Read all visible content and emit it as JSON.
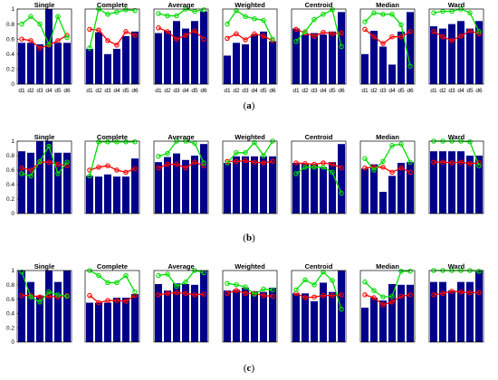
{
  "chart_data": [
    {
      "type": "bar",
      "caption": "(a)",
      "categories": [
        "d1",
        "d2",
        "d3",
        "d4",
        "d5",
        "d6"
      ],
      "ylim": [
        0,
        1
      ],
      "yticks": [
        "0",
        "0.2",
        "0.4",
        "0.6",
        "0.8",
        "1"
      ],
      "panels": [
        {
          "title": "Single",
          "bars": [
            0.55,
            0.55,
            0.53,
            1.0,
            0.55,
            0.55
          ],
          "red": [
            0.6,
            0.58,
            0.48,
            0.52,
            0.58,
            0.65
          ],
          "green": [
            0.8,
            0.9,
            0.8,
            0.53,
            0.9,
            0.62
          ]
        },
        {
          "title": "Complete",
          "bars": [
            0.47,
            0.69,
            0.4,
            0.47,
            0.64,
            0.7
          ],
          "red": [
            0.73,
            0.72,
            0.58,
            0.52,
            0.7,
            0.65
          ],
          "green": [
            0.48,
            1.0,
            0.93,
            0.96,
            0.99,
            0.98
          ]
        },
        {
          "title": "Average",
          "bars": [
            0.68,
            0.71,
            0.84,
            0.74,
            0.84,
            0.97
          ],
          "red": [
            0.75,
            0.7,
            0.6,
            0.65,
            0.71,
            0.6
          ],
          "green": [
            0.94,
            0.91,
            0.91,
            1.0,
            0.97,
            0.99
          ]
        },
        {
          "title": "Weighted",
          "bars": [
            0.38,
            0.55,
            0.53,
            0.66,
            0.7,
            0.57
          ],
          "red": [
            0.61,
            0.67,
            0.59,
            0.67,
            0.64,
            0.58
          ],
          "green": [
            0.8,
            0.98,
            0.9,
            0.87,
            0.85,
            0.6
          ]
        },
        {
          "title": "Centroid",
          "bars": [
            0.74,
            0.66,
            0.68,
            0.66,
            0.7,
            0.96
          ],
          "red": [
            0.73,
            0.68,
            0.64,
            0.69,
            0.67,
            0.68
          ],
          "green": [
            0.57,
            0.7,
            0.86,
            0.93,
            0.99,
            0.5
          ]
        },
        {
          "title": "Median",
          "bars": [
            0.4,
            0.71,
            0.5,
            0.26,
            0.7,
            0.96
          ],
          "red": [
            0.73,
            0.63,
            0.54,
            0.63,
            0.63,
            0.7
          ],
          "green": [
            0.83,
            0.95,
            0.93,
            0.93,
            0.79,
            0.24
          ]
        },
        {
          "title": "Ward",
          "bars": [
            0.77,
            0.74,
            0.8,
            0.84,
            0.74,
            0.84
          ],
          "red": [
            0.7,
            0.63,
            0.58,
            0.64,
            0.71,
            0.67
          ],
          "green": [
            0.95,
            0.97,
            0.97,
            1.0,
            0.95,
            0.7
          ]
        }
      ]
    },
    {
      "type": "bar",
      "caption": "(b)",
      "categories": [
        "d1",
        "d2",
        "d3",
        "d4",
        "d5",
        "d6"
      ],
      "ylim": [
        0,
        1
      ],
      "yticks": [
        "0",
        "0.2",
        "0.4",
        "0.6",
        "0.8",
        "1"
      ],
      "panels": [
        {
          "title": "Single",
          "bars": [
            0.86,
            0.84,
            1.0,
            1.0,
            0.84,
            0.84
          ],
          "red": [
            0.63,
            0.6,
            0.71,
            0.71,
            0.68,
            0.66
          ],
          "green": [
            0.55,
            0.52,
            0.72,
            0.93,
            0.55,
            0.71
          ]
        },
        {
          "title": "Complete",
          "bars": [
            0.52,
            0.51,
            0.54,
            0.51,
            0.51,
            0.76
          ],
          "red": [
            0.6,
            0.64,
            0.66,
            0.6,
            0.57,
            0.62
          ],
          "green": [
            0.52,
            0.99,
            0.99,
            0.99,
            0.99,
            0.99
          ]
        },
        {
          "title": "Average",
          "bars": [
            0.71,
            0.78,
            0.83,
            0.74,
            0.8,
            0.96
          ],
          "red": [
            0.63,
            0.68,
            0.68,
            0.63,
            0.71,
            0.66
          ],
          "green": [
            0.79,
            0.83,
            1.0,
            1.0,
            0.97,
            0.7
          ]
        },
        {
          "title": "Weighted",
          "bars": [
            0.7,
            0.79,
            0.79,
            0.79,
            0.79,
            0.79
          ],
          "red": [
            0.72,
            0.72,
            0.73,
            0.71,
            0.7,
            0.72
          ],
          "green": [
            0.7,
            0.84,
            0.84,
            0.98,
            0.8,
            1.0
          ]
        },
        {
          "title": "Centroid",
          "bars": [
            0.7,
            0.69,
            0.69,
            0.64,
            0.71,
            0.96
          ],
          "red": [
            0.7,
            0.69,
            0.68,
            0.7,
            0.68,
            0.63
          ],
          "green": [
            0.55,
            0.64,
            0.64,
            0.64,
            0.57,
            0.28
          ]
        },
        {
          "title": "Median",
          "bars": [
            0.62,
            0.68,
            0.3,
            0.52,
            0.7,
            0.71
          ],
          "red": [
            0.63,
            0.64,
            0.64,
            0.57,
            0.63,
            0.57
          ],
          "green": [
            0.76,
            0.6,
            0.72,
            0.94,
            0.96,
            0.71
          ]
        },
        {
          "title": "Ward",
          "bars": [
            0.86,
            0.86,
            0.86,
            0.86,
            0.8,
            0.8
          ],
          "red": [
            0.71,
            0.71,
            0.7,
            0.71,
            0.69,
            0.7
          ],
          "green": [
            1.0,
            1.0,
            1.0,
            1.0,
            0.99,
            0.66
          ]
        }
      ]
    },
    {
      "type": "bar",
      "caption": "(c)",
      "categories": [
        "d1",
        "d2",
        "d3",
        "d4",
        "d5",
        "d6"
      ],
      "ylim": [
        0,
        1
      ],
      "yticks": [
        "0",
        "0.2",
        "0.4",
        "0.6",
        "0.8",
        "1"
      ],
      "panels": [
        {
          "title": "Single",
          "bars": [
            1.0,
            0.84,
            0.65,
            1.0,
            0.84,
            1.0
          ],
          "red": [
            0.65,
            0.65,
            0.63,
            0.64,
            0.63,
            0.65
          ],
          "green": [
            0.98,
            0.63,
            0.56,
            0.7,
            0.66,
            0.64
          ]
        },
        {
          "title": "Complete",
          "bars": [
            0.55,
            0.55,
            0.55,
            0.62,
            0.62,
            0.67
          ],
          "red": [
            0.65,
            0.55,
            0.58,
            0.58,
            0.57,
            0.65
          ],
          "green": [
            1.0,
            0.93,
            0.83,
            0.83,
            0.93,
            0.7
          ]
        },
        {
          "title": "Average",
          "bars": [
            0.81,
            0.72,
            0.82,
            0.81,
            0.8,
            1.0
          ],
          "red": [
            0.66,
            0.68,
            0.69,
            0.68,
            0.66,
            0.67
          ],
          "green": [
            0.93,
            0.95,
            0.78,
            0.84,
            1.0,
            0.97
          ]
        },
        {
          "title": "Weighted",
          "bars": [
            0.72,
            0.73,
            0.76,
            0.71,
            0.7,
            0.76
          ],
          "red": [
            0.68,
            0.72,
            0.68,
            0.68,
            0.65,
            0.64
          ],
          "green": [
            0.82,
            0.8,
            0.77,
            0.67,
            0.74,
            0.73
          ]
        },
        {
          "title": "Centroid",
          "bars": [
            0.68,
            0.68,
            0.57,
            0.83,
            0.7,
            1.0
          ],
          "red": [
            0.68,
            0.62,
            0.63,
            0.65,
            0.65,
            0.66
          ],
          "green": [
            0.73,
            0.87,
            0.8,
            0.98,
            0.86,
            0.46
          ]
        },
        {
          "title": "Median",
          "bars": [
            0.48,
            0.62,
            0.58,
            0.81,
            0.8,
            0.8
          ],
          "red": [
            0.66,
            0.62,
            0.52,
            0.56,
            0.64,
            0.66
          ],
          "green": [
            0.84,
            0.72,
            0.63,
            0.64,
            0.99,
            0.99
          ]
        },
        {
          "title": "Ward",
          "bars": [
            0.84,
            0.84,
            0.72,
            0.84,
            0.84,
            1.0
          ],
          "red": [
            0.66,
            0.68,
            0.71,
            0.7,
            0.69,
            0.69
          ],
          "green": [
            1.0,
            1.0,
            1.0,
            1.0,
            1.0,
            0.99
          ]
        }
      ]
    }
  ],
  "colors": {
    "bar": "#00008B",
    "red": "#FF0000",
    "green": "#00DD00"
  }
}
